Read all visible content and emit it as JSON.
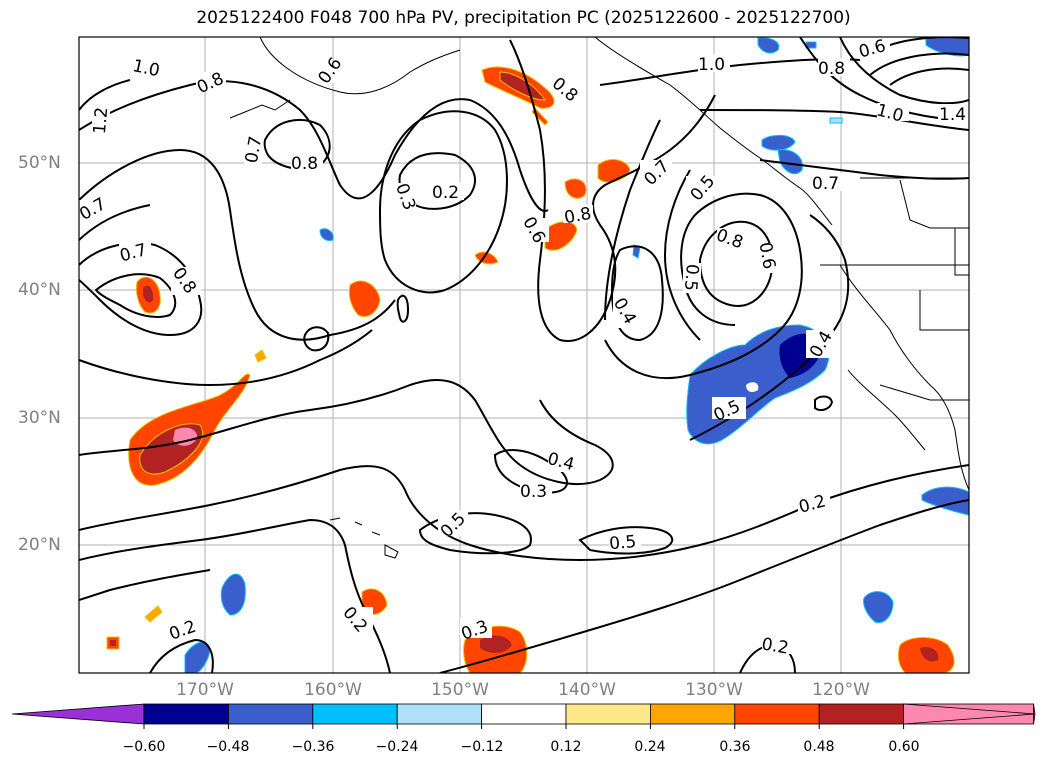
{
  "title": "2025122400 F048 700 hPa PV, precipitation PC (2025122600 - 2025122700)",
  "axes": {
    "lat_labels": [
      "50°N",
      "40°N",
      "30°N",
      "20°N"
    ],
    "lon_labels": [
      "170°W",
      "160°W",
      "150°W",
      "140°W",
      "130°W",
      "120°W"
    ]
  },
  "colorbar": {
    "ticks": [
      "−0.60",
      "−0.48",
      "−0.36",
      "−0.24",
      "−0.12",
      "0.12",
      "0.24",
      "0.36",
      "0.48",
      "0.60"
    ],
    "colors": [
      "#9b30d8",
      "#000090",
      "#3a5fcd",
      "#00bfff",
      "#b0e0f7",
      "#ffffff",
      "#ffe88a",
      "#ffa500",
      "#ff4500",
      "#b22222",
      "#ff88b0"
    ]
  },
  "contours": {
    "labels": [
      "1.0",
      "0.8",
      "0.6",
      "1.2",
      "0.7",
      "0.8",
      "0.3",
      "0.2",
      "0.8",
      "0.6",
      "0.8",
      "1.0",
      "0.8",
      "0.6",
      "1.0",
      "1.4",
      "0.7",
      "0.5",
      "0.7",
      "0.8",
      "0.6",
      "0.8",
      "0.7",
      "0.4",
      "0.5",
      "0.4",
      "0.4",
      "0.3",
      "0.5",
      "0.5",
      "0.2",
      "0.2",
      "0.2",
      "0.3",
      "0.2",
      "0.7"
    ]
  },
  "colors": {
    "frame": "#000000",
    "grid": "#b0b0b0",
    "contour": "#000000",
    "axis_text": "#808080"
  }
}
